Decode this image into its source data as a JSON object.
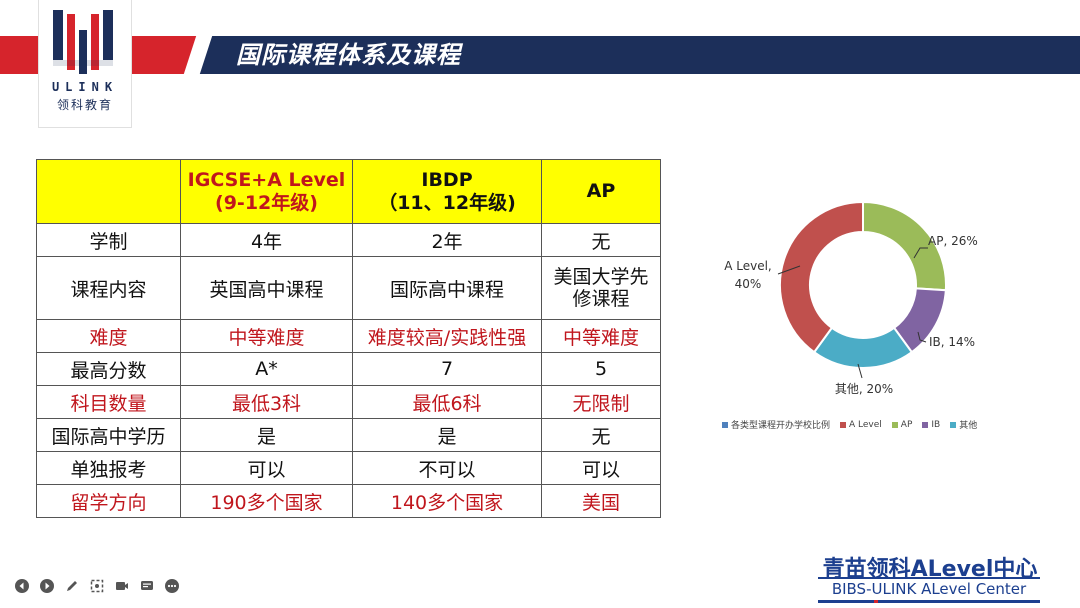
{
  "slide": {
    "title": "国际课程体系及课程",
    "logo": {
      "text": "ULINK",
      "subtitle": "领科教育"
    }
  },
  "table": {
    "headers": [
      {
        "line1": "",
        "line2": ""
      },
      {
        "line1": "IGCSE+A Level",
        "line2": "(9-12年级)"
      },
      {
        "line1": "IBDP",
        "line2": "（11、12年级)"
      },
      {
        "line1": "AP",
        "line2": ""
      }
    ],
    "rows": [
      {
        "cells": [
          "学制",
          "4年",
          "2年",
          "无"
        ],
        "highlight": false
      },
      {
        "cells": [
          "课程内容",
          "英国高中课程",
          "国际高中课程",
          "美国大学先修课程"
        ],
        "highlight": false
      },
      {
        "cells": [
          "难度",
          "中等难度",
          "难度较高/实践性强",
          "中等难度"
        ],
        "highlight": true
      },
      {
        "cells": [
          "最高分数",
          "A*",
          "7",
          "5"
        ],
        "highlight": false
      },
      {
        "cells": [
          "科目数量",
          "最低3科",
          "最低6科",
          "无限制"
        ],
        "highlight": true
      },
      {
        "cells": [
          "国际高中学历",
          "是",
          "是",
          "无"
        ],
        "highlight": false
      },
      {
        "cells": [
          "单独报考",
          "可以",
          "不可以",
          "可以"
        ],
        "highlight": false
      },
      {
        "cells": [
          "留学方向",
          "190多个国家",
          "140多个国家",
          "美国"
        ],
        "highlight": true
      }
    ],
    "ap_content_line1": "美国大学先",
    "ap_content_line2": "修课程"
  },
  "chart_data": {
    "type": "pie",
    "variant": "donut",
    "series_name": "各类型课程开办学校比例",
    "categories": [
      "A Level",
      "AP",
      "IB",
      "其他"
    ],
    "values": [
      40,
      26,
      14,
      20
    ],
    "data_labels": [
      "A Level, 40%",
      "AP, 26%",
      "IB, 14%",
      "其他, 20%"
    ],
    "colors": [
      "#c0504d",
      "#9bbb59",
      "#8064a2",
      "#4bacc6"
    ],
    "legend_series_color": "#4f81bd",
    "legend_placement": "bottom"
  },
  "brand": {
    "line1": "青苗领科ALevel中心",
    "line2": "BIBS-ULINK ALevel Center"
  },
  "toolbar": {
    "icons": [
      "prev-icon",
      "next-icon",
      "pen-icon",
      "screen-icon",
      "camera-icon",
      "chat-icon",
      "more-icon"
    ]
  }
}
